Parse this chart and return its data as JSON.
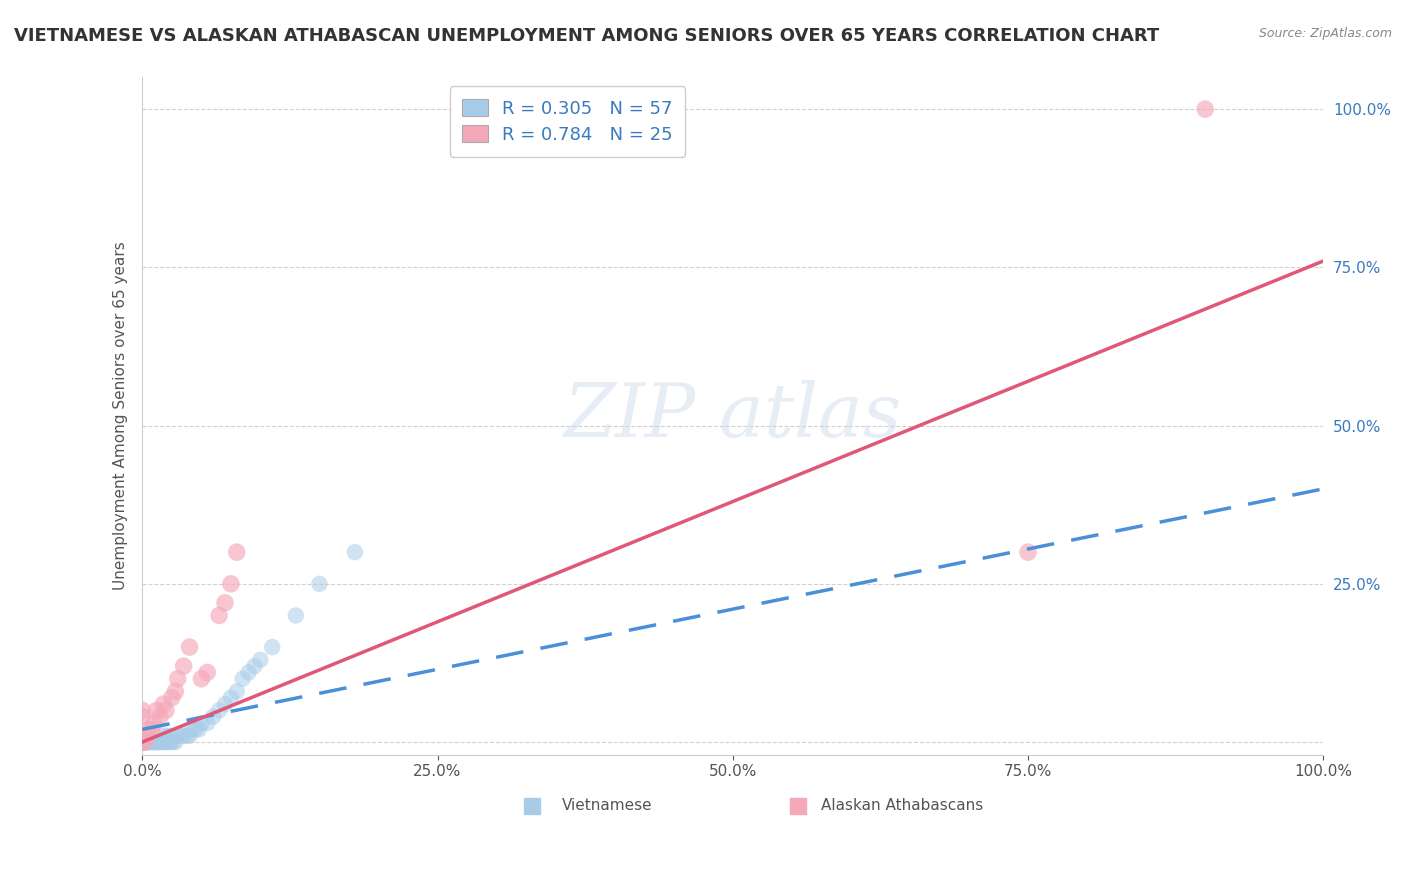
{
  "title": "VIETNAMESE VS ALASKAN ATHABASCAN UNEMPLOYMENT AMONG SENIORS OVER 65 YEARS CORRELATION CHART",
  "source": "Source: ZipAtlas.com",
  "ylabel": "Unemployment Among Seniors over 65 years",
  "background_color": "#ffffff",
  "vietnamese": {
    "R": 0.305,
    "N": 57,
    "color": "#a8cce8",
    "label": "Vietnamese",
    "x": [
      0.0,
      0.0,
      0.001,
      0.001,
      0.002,
      0.002,
      0.003,
      0.003,
      0.004,
      0.004,
      0.005,
      0.005,
      0.006,
      0.007,
      0.008,
      0.009,
      0.01,
      0.01,
      0.011,
      0.012,
      0.013,
      0.014,
      0.015,
      0.016,
      0.017,
      0.018,
      0.019,
      0.02,
      0.021,
      0.022,
      0.024,
      0.025,
      0.026,
      0.028,
      0.03,
      0.032,
      0.035,
      0.038,
      0.04,
      0.042,
      0.045,
      0.048,
      0.05,
      0.055,
      0.06,
      0.065,
      0.07,
      0.075,
      0.08,
      0.085,
      0.09,
      0.095,
      0.1,
      0.11,
      0.13,
      0.15,
      0.18
    ],
    "y": [
      0.0,
      0.0,
      0.0,
      0.0,
      0.0,
      0.0,
      0.0,
      0.0,
      0.0,
      0.0,
      0.0,
      0.0,
      0.0,
      0.0,
      0.0,
      0.0,
      0.0,
      0.0,
      0.0,
      0.0,
      0.0,
      0.0,
      0.0,
      0.0,
      0.0,
      0.01,
      0.0,
      0.0,
      0.01,
      0.0,
      0.0,
      0.01,
      0.0,
      0.0,
      0.01,
      0.01,
      0.01,
      0.01,
      0.01,
      0.02,
      0.02,
      0.02,
      0.03,
      0.03,
      0.04,
      0.05,
      0.06,
      0.07,
      0.08,
      0.1,
      0.11,
      0.12,
      0.13,
      0.15,
      0.2,
      0.25,
      0.3
    ],
    "trend_x0": 0.0,
    "trend_y0": 0.02,
    "trend_x1": 1.0,
    "trend_y1": 0.4
  },
  "athabascan": {
    "R": 0.784,
    "N": 25,
    "color": "#f4a8b8",
    "label": "Alaskan Athabascans",
    "x": [
      0.0,
      0.0,
      0.0,
      0.002,
      0.004,
      0.005,
      0.008,
      0.01,
      0.012,
      0.015,
      0.018,
      0.02,
      0.025,
      0.028,
      0.03,
      0.035,
      0.04,
      0.05,
      0.055,
      0.065,
      0.07,
      0.075,
      0.08,
      0.75,
      0.9
    ],
    "y": [
      0.0,
      0.04,
      0.05,
      0.0,
      0.01,
      0.02,
      0.02,
      0.03,
      0.05,
      0.04,
      0.06,
      0.05,
      0.07,
      0.08,
      0.1,
      0.12,
      0.15,
      0.1,
      0.11,
      0.2,
      0.22,
      0.25,
      0.3,
      0.3,
      1.0
    ],
    "trend_x0": 0.0,
    "trend_y0": 0.0,
    "trend_x1": 1.0,
    "trend_y1": 0.76
  },
  "xlim": [
    0.0,
    1.0
  ],
  "ylim": [
    -0.02,
    1.05
  ],
  "xticks": [
    0.0,
    0.25,
    0.5,
    0.75,
    1.0
  ],
  "yticks": [
    0.0,
    0.25,
    0.5,
    0.75,
    1.0
  ],
  "xticklabels": [
    "0.0%",
    "25.0%",
    "50.0%",
    "75.0%",
    "100.0%"
  ],
  "yticklabels": [
    "",
    "25.0%",
    "50.0%",
    "75.0%",
    "100.0%"
  ],
  "tick_color": "#3a7bbf",
  "title_fontsize": 13,
  "source_fontsize": 9,
  "axis_label_fontsize": 11
}
